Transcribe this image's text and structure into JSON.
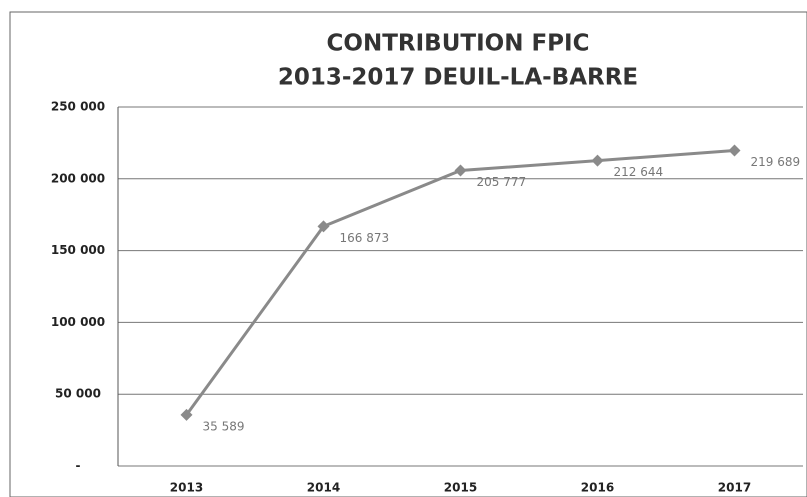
{
  "chart_data": {
    "type": "line",
    "title": "CONTRIBUTION FPIC",
    "subtitle": "2013-2017 DEUIL-LA-BARRE",
    "categories": [
      "2013",
      "2014",
      "2015",
      "2016",
      "2017"
    ],
    "values": [
      35589,
      166873,
      205777,
      212644,
      219689
    ],
    "value_labels": [
      "35 589",
      "166 873",
      "205 777",
      "212 644",
      "219 689"
    ],
    "color": "#8a8a8a",
    "ylim": [
      0,
      250000
    ],
    "yticks": [
      {
        "value": 0,
        "label": "-"
      },
      {
        "value": 50000,
        "label": "50 000"
      },
      {
        "value": 100000,
        "label": "100 000"
      },
      {
        "value": 150000,
        "label": "150 000"
      },
      {
        "value": 200000,
        "label": "200 000"
      },
      {
        "value": 250000,
        "label": "250 000"
      }
    ],
    "grid": true
  }
}
